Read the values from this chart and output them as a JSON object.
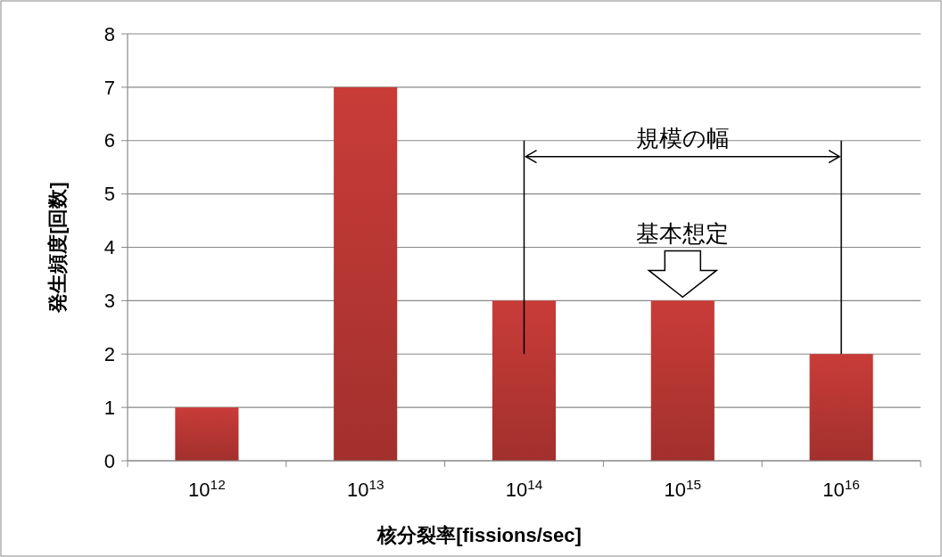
{
  "chart_data": {
    "type": "bar",
    "xlabel": "核分裂率[fissions/sec]",
    "ylabel": "発生頻度[回数]",
    "categories": [
      "10$^{12}$",
      "10$^{13}$",
      "10$^{14}$",
      "10$^{15}$",
      "10$^{16}$"
    ],
    "values": [
      1,
      7,
      3,
      3,
      2
    ],
    "color": "#c93c38",
    "ylim": [
      0,
      8
    ],
    "yticks": [
      0,
      1,
      2,
      3,
      4,
      5,
      6,
      7,
      8
    ],
    "grid": "y",
    "annotations": [
      "規模の幅",
      {
        "text": "基本想定",
        "x": "10$^{15}$",
        "y": 3
      }
    ]
  }
}
